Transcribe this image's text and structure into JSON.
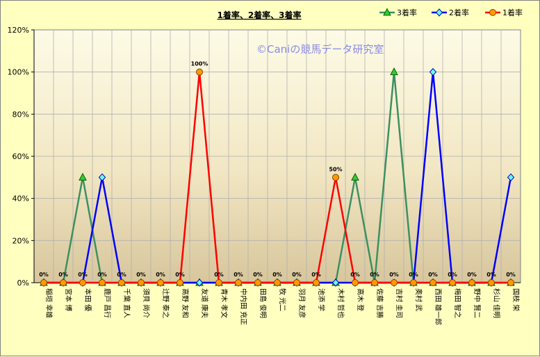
{
  "chart_data": {
    "type": "line",
    "title": "1着率、2着率、3着率",
    "watermark": "©Caniの競馬データ研究室",
    "ylim": [
      0,
      120
    ],
    "yticks": [
      "0%",
      "20%",
      "40%",
      "60%",
      "80%",
      "100%",
      "120%"
    ],
    "grid": true,
    "legend_position": "top-right",
    "categories": [
      "稲垣 幸雄",
      "宮本 博",
      "本田 優",
      "鹿戸 昌行",
      "千葉 直人",
      "須貝 尚介",
      "辻野 泰之",
      "高野 友和",
      "友道 康夫",
      "青木 孝文",
      "中内田 充正",
      "田島 俊明",
      "牧 光二",
      "羽月 友彦",
      "池添 学",
      "木村 哲也",
      "高木 登",
      "佐藤 吉勝",
      "吉村 圭司",
      "奥村 武",
      "西田 雄一郎",
      "梅田 智之",
      "野中 賢二",
      "杉山 佳明",
      "国枝 栄"
    ],
    "series": [
      {
        "name": "3着率",
        "color": "#3c9060",
        "marker": "triangle",
        "marker_fill": "#33cc33",
        "values": [
          0,
          0,
          50,
          0,
          0,
          0,
          0,
          0,
          0,
          0,
          0,
          0,
          0,
          0,
          0,
          0,
          50,
          0,
          100,
          0,
          0,
          0,
          0,
          0,
          0
        ]
      },
      {
        "name": "2着率",
        "color": "#0000ff",
        "marker": "diamond",
        "marker_fill": "#66ffff",
        "values": [
          0,
          0,
          0,
          50,
          0,
          0,
          0,
          0,
          0,
          0,
          0,
          0,
          0,
          0,
          0,
          0,
          0,
          0,
          0,
          0,
          100,
          0,
          0,
          0,
          50
        ]
      },
      {
        "name": "1着率",
        "color": "#ff0000",
        "marker": "circle",
        "marker_fill": "#ff9900",
        "values": [
          0,
          0,
          0,
          0,
          0,
          0,
          0,
          0,
          100,
          0,
          0,
          0,
          0,
          0,
          0,
          50,
          0,
          0,
          0,
          0,
          0,
          0,
          0,
          0,
          0
        ]
      }
    ],
    "data_labels": [
      "0%",
      "0%",
      "0%",
      "0%",
      "0%",
      "0%",
      "0%",
      "0%",
      "100%",
      "0%",
      "0%",
      "0%",
      "0%",
      "0%",
      "0%",
      "50%",
      "0%",
      "0%",
      "0%",
      "0%",
      "0%",
      "0%",
      "0%",
      "0%",
      "0%"
    ]
  }
}
